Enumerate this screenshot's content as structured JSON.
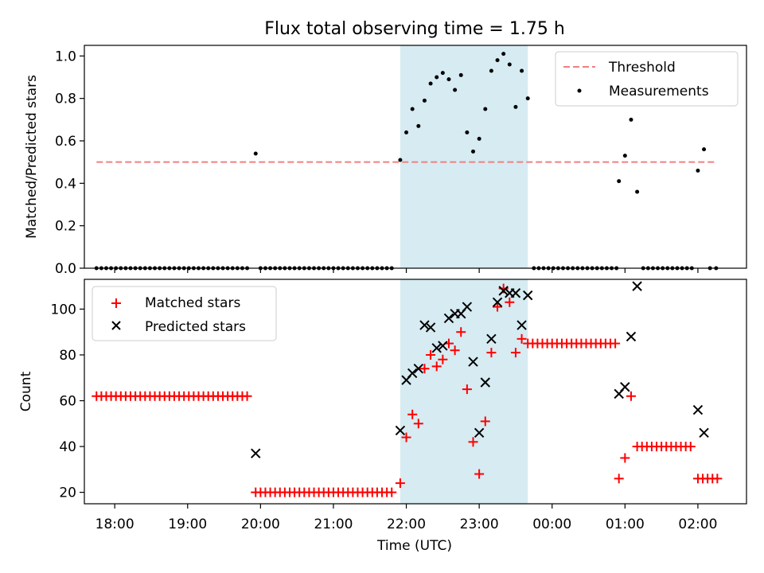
{
  "title": "Flux total observing time = 1.75 h",
  "colors": {
    "threshold": "#f08080",
    "measurements": "#000000",
    "matched": "#ff0000",
    "predicted": "#000000",
    "highlight": "#add8e6"
  },
  "chart_data": [
    {
      "type": "scatter",
      "ylabel": "Matched/Predicted stars",
      "xlabel": "",
      "ylim": [
        0.0,
        1.05
      ],
      "xlim": [
        "17:35",
        "02:40"
      ],
      "highlight_span": [
        "21:55",
        "23:40"
      ],
      "y_ticks": [
        "0.0",
        "0.2",
        "0.4",
        "0.6",
        "0.8",
        "1.0"
      ],
      "legend": {
        "placement": "top-right",
        "threshold_label": "Threshold",
        "measurements_label": "Measurements"
      },
      "threshold": {
        "value": 0.5,
        "x": [
          "17:45",
          "02:15"
        ]
      },
      "measurements": [
        {
          "x": "17:45",
          "y": 0
        },
        {
          "x": "17:49",
          "y": 0
        },
        {
          "x": "17:53",
          "y": 0
        },
        {
          "x": "17:57",
          "y": 0
        },
        {
          "x": "18:01",
          "y": 0
        },
        {
          "x": "18:05",
          "y": 0
        },
        {
          "x": "18:09",
          "y": 0
        },
        {
          "x": "18:13",
          "y": 0
        },
        {
          "x": "18:17",
          "y": 0
        },
        {
          "x": "18:21",
          "y": 0
        },
        {
          "x": "18:25",
          "y": 0
        },
        {
          "x": "18:29",
          "y": 0
        },
        {
          "x": "18:33",
          "y": 0
        },
        {
          "x": "18:37",
          "y": 0
        },
        {
          "x": "18:41",
          "y": 0
        },
        {
          "x": "18:45",
          "y": 0
        },
        {
          "x": "18:49",
          "y": 0
        },
        {
          "x": "18:53",
          "y": 0
        },
        {
          "x": "18:57",
          "y": 0
        },
        {
          "x": "19:01",
          "y": 0
        },
        {
          "x": "19:05",
          "y": 0
        },
        {
          "x": "19:09",
          "y": 0
        },
        {
          "x": "19:13",
          "y": 0
        },
        {
          "x": "19:17",
          "y": 0
        },
        {
          "x": "19:21",
          "y": 0
        },
        {
          "x": "19:25",
          "y": 0
        },
        {
          "x": "19:29",
          "y": 0
        },
        {
          "x": "19:33",
          "y": 0
        },
        {
          "x": "19:37",
          "y": 0
        },
        {
          "x": "19:41",
          "y": 0
        },
        {
          "x": "19:45",
          "y": 0
        },
        {
          "x": "19:49",
          "y": 0
        },
        {
          "x": "19:56",
          "y": 0.54
        },
        {
          "x": "20:00",
          "y": 0
        },
        {
          "x": "20:04",
          "y": 0
        },
        {
          "x": "20:08",
          "y": 0
        },
        {
          "x": "20:12",
          "y": 0
        },
        {
          "x": "20:16",
          "y": 0
        },
        {
          "x": "20:20",
          "y": 0
        },
        {
          "x": "20:24",
          "y": 0
        },
        {
          "x": "20:28",
          "y": 0
        },
        {
          "x": "20:32",
          "y": 0
        },
        {
          "x": "20:36",
          "y": 0
        },
        {
          "x": "20:40",
          "y": 0
        },
        {
          "x": "20:44",
          "y": 0
        },
        {
          "x": "20:48",
          "y": 0
        },
        {
          "x": "20:52",
          "y": 0
        },
        {
          "x": "20:56",
          "y": 0
        },
        {
          "x": "21:00",
          "y": 0
        },
        {
          "x": "21:04",
          "y": 0
        },
        {
          "x": "21:08",
          "y": 0
        },
        {
          "x": "21:12",
          "y": 0
        },
        {
          "x": "21:16",
          "y": 0
        },
        {
          "x": "21:20",
          "y": 0
        },
        {
          "x": "21:24",
          "y": 0
        },
        {
          "x": "21:28",
          "y": 0
        },
        {
          "x": "21:32",
          "y": 0
        },
        {
          "x": "21:36",
          "y": 0
        },
        {
          "x": "21:40",
          "y": 0
        },
        {
          "x": "21:44",
          "y": 0
        },
        {
          "x": "21:48",
          "y": 0
        },
        {
          "x": "21:55",
          "y": 0.51
        },
        {
          "x": "22:00",
          "y": 0.64
        },
        {
          "x": "22:05",
          "y": 0.75
        },
        {
          "x": "22:10",
          "y": 0.67
        },
        {
          "x": "22:15",
          "y": 0.79
        },
        {
          "x": "22:20",
          "y": 0.87
        },
        {
          "x": "22:25",
          "y": 0.9
        },
        {
          "x": "22:30",
          "y": 0.92
        },
        {
          "x": "22:35",
          "y": 0.89
        },
        {
          "x": "22:40",
          "y": 0.84
        },
        {
          "x": "22:45",
          "y": 0.91
        },
        {
          "x": "22:50",
          "y": 0.64
        },
        {
          "x": "22:55",
          "y": 0.55
        },
        {
          "x": "23:00",
          "y": 0.61
        },
        {
          "x": "23:05",
          "y": 0.75
        },
        {
          "x": "23:10",
          "y": 0.93
        },
        {
          "x": "23:15",
          "y": 0.98
        },
        {
          "x": "23:20",
          "y": 1.01
        },
        {
          "x": "23:25",
          "y": 0.96
        },
        {
          "x": "23:30",
          "y": 0.76
        },
        {
          "x": "23:35",
          "y": 0.93
        },
        {
          "x": "23:40",
          "y": 0.8
        },
        {
          "x": "23:45",
          "y": 0
        },
        {
          "x": "23:49",
          "y": 0
        },
        {
          "x": "23:53",
          "y": 0
        },
        {
          "x": "23:57",
          "y": 0
        },
        {
          "x": "00:01",
          "y": 0
        },
        {
          "x": "00:05",
          "y": 0
        },
        {
          "x": "00:09",
          "y": 0
        },
        {
          "x": "00:13",
          "y": 0
        },
        {
          "x": "00:17",
          "y": 0
        },
        {
          "x": "00:21",
          "y": 0
        },
        {
          "x": "00:25",
          "y": 0
        },
        {
          "x": "00:29",
          "y": 0
        },
        {
          "x": "00:33",
          "y": 0
        },
        {
          "x": "00:37",
          "y": 0
        },
        {
          "x": "00:41",
          "y": 0
        },
        {
          "x": "00:45",
          "y": 0
        },
        {
          "x": "00:49",
          "y": 0
        },
        {
          "x": "00:53",
          "y": 0
        },
        {
          "x": "00:55",
          "y": 0.41
        },
        {
          "x": "01:00",
          "y": 0.53
        },
        {
          "x": "01:05",
          "y": 0.7
        },
        {
          "x": "01:10",
          "y": 0.36
        },
        {
          "x": "01:15",
          "y": 0
        },
        {
          "x": "01:19",
          "y": 0
        },
        {
          "x": "01:23",
          "y": 0
        },
        {
          "x": "01:27",
          "y": 0
        },
        {
          "x": "01:31",
          "y": 0
        },
        {
          "x": "01:35",
          "y": 0
        },
        {
          "x": "01:39",
          "y": 0
        },
        {
          "x": "01:43",
          "y": 0
        },
        {
          "x": "01:47",
          "y": 0
        },
        {
          "x": "01:51",
          "y": 0
        },
        {
          "x": "01:55",
          "y": 0
        },
        {
          "x": "02:00",
          "y": 0.46
        },
        {
          "x": "02:05",
          "y": 0.56
        },
        {
          "x": "02:10",
          "y": 0
        },
        {
          "x": "02:15",
          "y": 0
        }
      ]
    },
    {
      "type": "scatter",
      "ylabel": "Count",
      "xlabel": "Time (UTC)",
      "ylim": [
        15,
        113
      ],
      "xlim": [
        "17:35",
        "02:40"
      ],
      "highlight_span": [
        "21:55",
        "23:40"
      ],
      "y_ticks": [
        "20",
        "40",
        "60",
        "80",
        "100"
      ],
      "x_ticks": [
        "18:00",
        "19:00",
        "20:00",
        "21:00",
        "22:00",
        "23:00",
        "00:00",
        "01:00",
        "02:00"
      ],
      "legend": {
        "placement": "top-left",
        "matched_label": "Matched stars",
        "predicted_label": "Predicted stars"
      },
      "matched": [
        {
          "x": "17:45",
          "y": 62
        },
        {
          "x": "17:49",
          "y": 62
        },
        {
          "x": "17:53",
          "y": 62
        },
        {
          "x": "17:57",
          "y": 62
        },
        {
          "x": "18:01",
          "y": 62
        },
        {
          "x": "18:05",
          "y": 62
        },
        {
          "x": "18:09",
          "y": 62
        },
        {
          "x": "18:13",
          "y": 62
        },
        {
          "x": "18:17",
          "y": 62
        },
        {
          "x": "18:21",
          "y": 62
        },
        {
          "x": "18:25",
          "y": 62
        },
        {
          "x": "18:29",
          "y": 62
        },
        {
          "x": "18:33",
          "y": 62
        },
        {
          "x": "18:37",
          "y": 62
        },
        {
          "x": "18:41",
          "y": 62
        },
        {
          "x": "18:45",
          "y": 62
        },
        {
          "x": "18:49",
          "y": 62
        },
        {
          "x": "18:53",
          "y": 62
        },
        {
          "x": "18:57",
          "y": 62
        },
        {
          "x": "19:01",
          "y": 62
        },
        {
          "x": "19:05",
          "y": 62
        },
        {
          "x": "19:09",
          "y": 62
        },
        {
          "x": "19:13",
          "y": 62
        },
        {
          "x": "19:17",
          "y": 62
        },
        {
          "x": "19:21",
          "y": 62
        },
        {
          "x": "19:25",
          "y": 62
        },
        {
          "x": "19:29",
          "y": 62
        },
        {
          "x": "19:33",
          "y": 62
        },
        {
          "x": "19:37",
          "y": 62
        },
        {
          "x": "19:41",
          "y": 62
        },
        {
          "x": "19:45",
          "y": 62
        },
        {
          "x": "19:49",
          "y": 62
        },
        {
          "x": "19:56",
          "y": 20
        },
        {
          "x": "20:00",
          "y": 20
        },
        {
          "x": "20:04",
          "y": 20
        },
        {
          "x": "20:08",
          "y": 20
        },
        {
          "x": "20:12",
          "y": 20
        },
        {
          "x": "20:16",
          "y": 20
        },
        {
          "x": "20:20",
          "y": 20
        },
        {
          "x": "20:24",
          "y": 20
        },
        {
          "x": "20:28",
          "y": 20
        },
        {
          "x": "20:32",
          "y": 20
        },
        {
          "x": "20:36",
          "y": 20
        },
        {
          "x": "20:40",
          "y": 20
        },
        {
          "x": "20:44",
          "y": 20
        },
        {
          "x": "20:48",
          "y": 20
        },
        {
          "x": "20:52",
          "y": 20
        },
        {
          "x": "20:56",
          "y": 20
        },
        {
          "x": "21:00",
          "y": 20
        },
        {
          "x": "21:04",
          "y": 20
        },
        {
          "x": "21:08",
          "y": 20
        },
        {
          "x": "21:12",
          "y": 20
        },
        {
          "x": "21:16",
          "y": 20
        },
        {
          "x": "21:20",
          "y": 20
        },
        {
          "x": "21:24",
          "y": 20
        },
        {
          "x": "21:28",
          "y": 20
        },
        {
          "x": "21:32",
          "y": 20
        },
        {
          "x": "21:36",
          "y": 20
        },
        {
          "x": "21:40",
          "y": 20
        },
        {
          "x": "21:44",
          "y": 20
        },
        {
          "x": "21:48",
          "y": 20
        },
        {
          "x": "21:55",
          "y": 24
        },
        {
          "x": "22:00",
          "y": 44
        },
        {
          "x": "22:05",
          "y": 54
        },
        {
          "x": "22:10",
          "y": 50
        },
        {
          "x": "22:15",
          "y": 74
        },
        {
          "x": "22:20",
          "y": 80
        },
        {
          "x": "22:25",
          "y": 75
        },
        {
          "x": "22:30",
          "y": 78
        },
        {
          "x": "22:35",
          "y": 85
        },
        {
          "x": "22:40",
          "y": 82
        },
        {
          "x": "22:45",
          "y": 90
        },
        {
          "x": "22:50",
          "y": 65
        },
        {
          "x": "22:55",
          "y": 42
        },
        {
          "x": "23:00",
          "y": 28
        },
        {
          "x": "23:05",
          "y": 51
        },
        {
          "x": "23:10",
          "y": 81
        },
        {
          "x": "23:15",
          "y": 101
        },
        {
          "x": "23:20",
          "y": 109
        },
        {
          "x": "23:25",
          "y": 103
        },
        {
          "x": "23:30",
          "y": 81
        },
        {
          "x": "23:35",
          "y": 87
        },
        {
          "x": "23:40",
          "y": 85
        },
        {
          "x": "23:44",
          "y": 85
        },
        {
          "x": "23:48",
          "y": 85
        },
        {
          "x": "23:52",
          "y": 85
        },
        {
          "x": "23:56",
          "y": 85
        },
        {
          "x": "00:00",
          "y": 85
        },
        {
          "x": "00:04",
          "y": 85
        },
        {
          "x": "00:08",
          "y": 85
        },
        {
          "x": "00:12",
          "y": 85
        },
        {
          "x": "00:16",
          "y": 85
        },
        {
          "x": "00:20",
          "y": 85
        },
        {
          "x": "00:24",
          "y": 85
        },
        {
          "x": "00:28",
          "y": 85
        },
        {
          "x": "00:32",
          "y": 85
        },
        {
          "x": "00:36",
          "y": 85
        },
        {
          "x": "00:40",
          "y": 85
        },
        {
          "x": "00:44",
          "y": 85
        },
        {
          "x": "00:48",
          "y": 85
        },
        {
          "x": "00:52",
          "y": 85
        },
        {
          "x": "00:55",
          "y": 26
        },
        {
          "x": "01:00",
          "y": 35
        },
        {
          "x": "01:05",
          "y": 62
        },
        {
          "x": "01:10",
          "y": 40
        },
        {
          "x": "01:14",
          "y": 40
        },
        {
          "x": "01:18",
          "y": 40
        },
        {
          "x": "01:22",
          "y": 40
        },
        {
          "x": "01:26",
          "y": 40
        },
        {
          "x": "01:30",
          "y": 40
        },
        {
          "x": "01:34",
          "y": 40
        },
        {
          "x": "01:38",
          "y": 40
        },
        {
          "x": "01:42",
          "y": 40
        },
        {
          "x": "01:46",
          "y": 40
        },
        {
          "x": "01:50",
          "y": 40
        },
        {
          "x": "01:54",
          "y": 40
        },
        {
          "x": "02:00",
          "y": 26
        },
        {
          "x": "02:04",
          "y": 26
        },
        {
          "x": "02:08",
          "y": 26
        },
        {
          "x": "02:12",
          "y": 26
        },
        {
          "x": "02:16",
          "y": 26
        }
      ],
      "predicted": [
        {
          "x": "19:56",
          "y": 37
        },
        {
          "x": "21:55",
          "y": 47
        },
        {
          "x": "22:00",
          "y": 69
        },
        {
          "x": "22:05",
          "y": 72
        },
        {
          "x": "22:10",
          "y": 74
        },
        {
          "x": "22:15",
          "y": 93
        },
        {
          "x": "22:20",
          "y": 92
        },
        {
          "x": "22:25",
          "y": 83
        },
        {
          "x": "22:30",
          "y": 84
        },
        {
          "x": "22:35",
          "y": 96
        },
        {
          "x": "22:40",
          "y": 98
        },
        {
          "x": "22:45",
          "y": 98
        },
        {
          "x": "22:50",
          "y": 101
        },
        {
          "x": "22:55",
          "y": 77
        },
        {
          "x": "23:00",
          "y": 46
        },
        {
          "x": "23:05",
          "y": 68
        },
        {
          "x": "23:10",
          "y": 87
        },
        {
          "x": "23:15",
          "y": 103
        },
        {
          "x": "23:20",
          "y": 108
        },
        {
          "x": "23:25",
          "y": 107
        },
        {
          "x": "23:30",
          "y": 107
        },
        {
          "x": "23:35",
          "y": 93
        },
        {
          "x": "23:40",
          "y": 106
        },
        {
          "x": "00:55",
          "y": 63
        },
        {
          "x": "01:00",
          "y": 66
        },
        {
          "x": "01:05",
          "y": 88
        },
        {
          "x": "01:10",
          "y": 110
        },
        {
          "x": "02:00",
          "y": 56
        },
        {
          "x": "02:05",
          "y": 46
        }
      ]
    }
  ]
}
